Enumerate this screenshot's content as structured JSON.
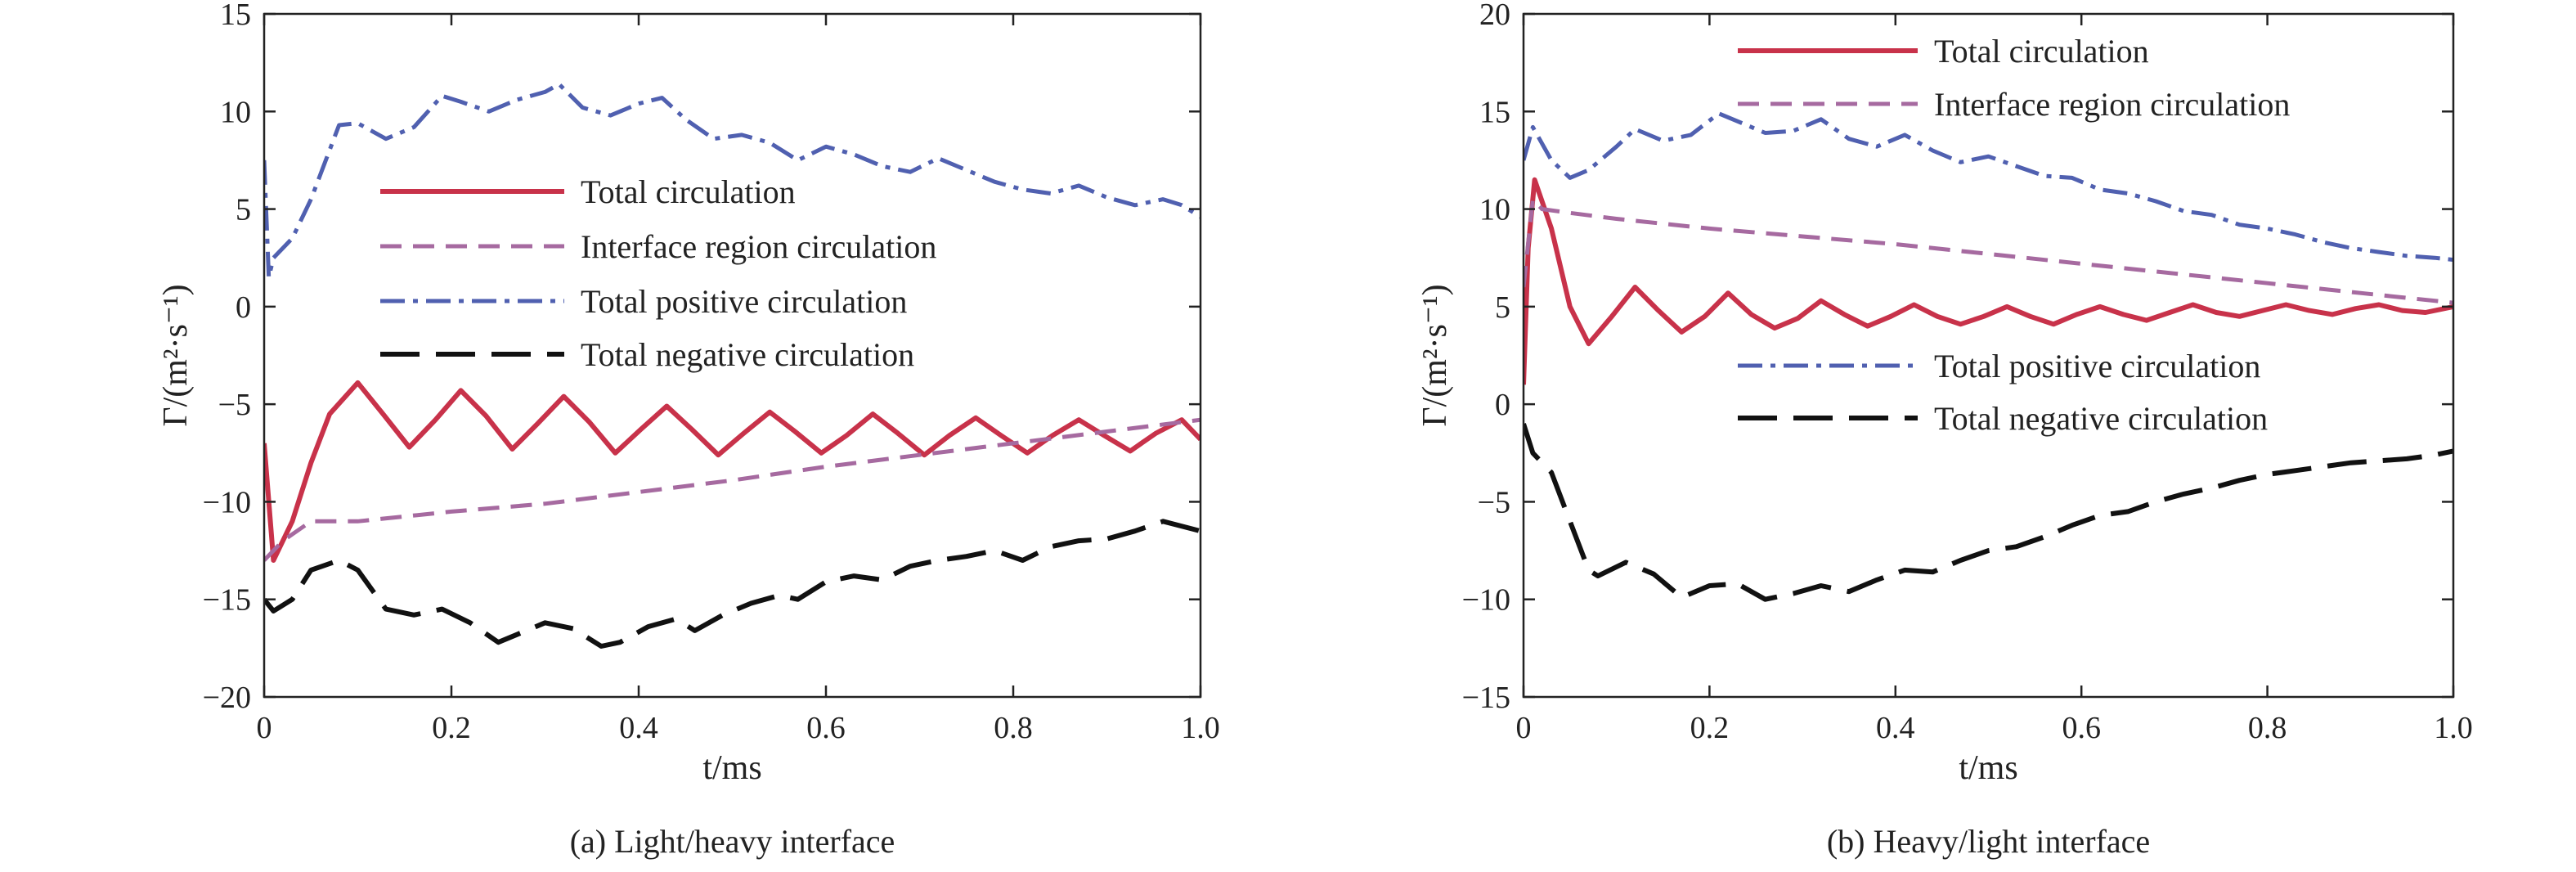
{
  "chart_data": [
    {
      "type": "line",
      "panel": "a",
      "caption": "(a) Light/heavy interface",
      "xlabel": "t/ms",
      "ylabel": "Γ/(m²·s⁻¹)",
      "xlim": [
        0,
        1.0
      ],
      "ylim": [
        -20,
        15
      ],
      "xticks": [
        "0",
        "0.2",
        "0.4",
        "0.6",
        "0.8",
        "1.0"
      ],
      "yticks": [
        "15",
        "10",
        "5",
        "0",
        "−5",
        "−10",
        "−15",
        "−20"
      ],
      "legend_position": "center",
      "series": [
        {
          "name": "Total circulation",
          "color": "#c8324a",
          "dash": "solid",
          "x": [
            0,
            0.01,
            0.03,
            0.05,
            0.07,
            0.1,
            0.127,
            0.155,
            0.183,
            0.21,
            0.237,
            0.265,
            0.292,
            0.32,
            0.347,
            0.375,
            0.402,
            0.43,
            0.457,
            0.485,
            0.512,
            0.54,
            0.567,
            0.595,
            0.622,
            0.65,
            0.677,
            0.705,
            0.732,
            0.76,
            0.787,
            0.815,
            0.842,
            0.87,
            0.897,
            0.925,
            0.952,
            0.98,
            1.0
          ],
          "values": [
            -7,
            -13,
            -11,
            -8,
            -5.5,
            -3.9,
            -5.5,
            -7.2,
            -5.8,
            -4.3,
            -5.6,
            -7.3,
            -6,
            -4.6,
            -5.9,
            -7.5,
            -6.3,
            -5.1,
            -6.3,
            -7.6,
            -6.5,
            -5.4,
            -6.4,
            -7.5,
            -6.6,
            -5.5,
            -6.5,
            -7.6,
            -6.6,
            -5.7,
            -6.6,
            -7.5,
            -6.6,
            -5.8,
            -6.6,
            -7.4,
            -6.5,
            -5.8,
            -6.8
          ]
        },
        {
          "name": "Interface region circulation",
          "color": "#a66aa0",
          "dash": "dashed",
          "x": [
            0,
            0.02,
            0.05,
            0.1,
            0.2,
            0.3,
            0.4,
            0.5,
            0.6,
            0.7,
            0.8,
            0.9,
            1.0
          ],
          "values": [
            -13,
            -12,
            -11,
            -11,
            -10.5,
            -10.1,
            -9.5,
            -8.9,
            -8.2,
            -7.6,
            -7,
            -6.4,
            -5.8
          ]
        },
        {
          "name": "Total positive circulation",
          "color": "#5060b0",
          "dash": "dashdot",
          "x": [
            0,
            0.005,
            0.01,
            0.03,
            0.05,
            0.08,
            0.1,
            0.13,
            0.16,
            0.19,
            0.21,
            0.24,
            0.27,
            0.3,
            0.315,
            0.34,
            0.37,
            0.4,
            0.425,
            0.45,
            0.48,
            0.51,
            0.54,
            0.57,
            0.6,
            0.63,
            0.66,
            0.69,
            0.72,
            0.75,
            0.78,
            0.81,
            0.84,
            0.87,
            0.9,
            0.93,
            0.96,
            0.98,
            1.0
          ],
          "values": [
            7.5,
            1.5,
            2.5,
            3.5,
            5.5,
            9.3,
            9.4,
            8.6,
            9.2,
            10.8,
            10.5,
            10.0,
            10.6,
            11.0,
            11.4,
            10.2,
            9.8,
            10.4,
            10.7,
            9.6,
            8.6,
            8.8,
            8.4,
            7.5,
            8.2,
            7.8,
            7.2,
            6.9,
            7.6,
            7.0,
            6.4,
            6.0,
            5.8,
            6.2,
            5.6,
            5.2,
            5.5,
            5.2,
            4.6
          ]
        },
        {
          "name": "Total negative circulation",
          "color": "#111111",
          "dash": "longdash",
          "x": [
            0,
            0.01,
            0.03,
            0.05,
            0.08,
            0.1,
            0.13,
            0.16,
            0.19,
            0.22,
            0.25,
            0.27,
            0.3,
            0.33,
            0.36,
            0.38,
            0.41,
            0.44,
            0.46,
            0.49,
            0.52,
            0.55,
            0.57,
            0.6,
            0.63,
            0.66,
            0.69,
            0.72,
            0.75,
            0.78,
            0.81,
            0.84,
            0.87,
            0.9,
            0.93,
            0.96,
            1.0
          ],
          "values": [
            -15,
            -15.6,
            -15,
            -13.5,
            -13,
            -13.5,
            -15.5,
            -15.8,
            -15.5,
            -16.2,
            -17.2,
            -16.8,
            -16.2,
            -16.5,
            -17.4,
            -17.2,
            -16.4,
            -16.0,
            -16.6,
            -15.8,
            -15.2,
            -14.8,
            -15.0,
            -14.1,
            -13.8,
            -14.0,
            -13.3,
            -13.0,
            -12.8,
            -12.5,
            -13.0,
            -12.3,
            -12.0,
            -11.9,
            -11.5,
            -11.0,
            -11.5
          ]
        }
      ]
    },
    {
      "type": "line",
      "panel": "b",
      "caption": "(b) Heavy/light interface",
      "xlabel": "t/ms",
      "ylabel": "Γ/(m²·s⁻¹)",
      "xlim": [
        0,
        1.0
      ],
      "ylim": [
        -15,
        20
      ],
      "xticks": [
        "0",
        "0.2",
        "0.4",
        "0.6",
        "0.8",
        "1.0"
      ],
      "yticks": [
        "20",
        "15",
        "10",
        "5",
        "0",
        "−5",
        "−10",
        "−15"
      ],
      "legend_position": "top-right and center-right",
      "series": [
        {
          "name": "Total circulation",
          "color": "#c8324a",
          "dash": "solid",
          "x": [
            0,
            0.005,
            0.012,
            0.03,
            0.05,
            0.07,
            0.095,
            0.12,
            0.145,
            0.17,
            0.195,
            0.22,
            0.245,
            0.27,
            0.295,
            0.32,
            0.345,
            0.37,
            0.395,
            0.42,
            0.445,
            0.47,
            0.495,
            0.52,
            0.545,
            0.57,
            0.595,
            0.62,
            0.645,
            0.67,
            0.695,
            0.72,
            0.745,
            0.77,
            0.795,
            0.82,
            0.845,
            0.87,
            0.895,
            0.92,
            0.945,
            0.97,
            1.0
          ],
          "values": [
            1,
            8,
            11.5,
            9,
            5,
            3.1,
            4.5,
            6.0,
            4.8,
            3.7,
            4.5,
            5.7,
            4.6,
            3.9,
            4.4,
            5.3,
            4.6,
            4.0,
            4.5,
            5.1,
            4.5,
            4.1,
            4.5,
            5.0,
            4.5,
            4.1,
            4.6,
            5.0,
            4.6,
            4.3,
            4.7,
            5.1,
            4.7,
            4.5,
            4.8,
            5.1,
            4.8,
            4.6,
            4.9,
            5.1,
            4.8,
            4.7,
            5.0
          ]
        },
        {
          "name": "Interface region circulation",
          "color": "#a66aa0",
          "dash": "dashed",
          "x": [
            0,
            0.01,
            0.02,
            0.05,
            0.1,
            0.2,
            0.3,
            0.4,
            0.5,
            0.6,
            0.7,
            0.8,
            0.9,
            1.0
          ],
          "values": [
            6,
            10.5,
            10,
            9.8,
            9.5,
            9.0,
            8.6,
            8.2,
            7.7,
            7.2,
            6.7,
            6.2,
            5.7,
            5.2
          ]
        },
        {
          "name": "Total positive circulation",
          "color": "#5060b0",
          "dash": "dashdot",
          "x": [
            0,
            0.01,
            0.03,
            0.05,
            0.07,
            0.1,
            0.12,
            0.15,
            0.18,
            0.21,
            0.23,
            0.26,
            0.29,
            0.32,
            0.35,
            0.38,
            0.41,
            0.44,
            0.47,
            0.5,
            0.53,
            0.56,
            0.59,
            0.62,
            0.65,
            0.68,
            0.71,
            0.74,
            0.77,
            0.8,
            0.83,
            0.86,
            0.89,
            0.92,
            0.95,
            0.98,
            1.0
          ],
          "values": [
            12.5,
            14.2,
            12.5,
            11.6,
            12.0,
            13.2,
            14.1,
            13.5,
            13.8,
            14.9,
            14.5,
            13.9,
            14.0,
            14.6,
            13.6,
            13.2,
            13.8,
            13.0,
            12.4,
            12.7,
            12.2,
            11.7,
            11.6,
            11.0,
            10.8,
            10.4,
            9.9,
            9.7,
            9.2,
            9.0,
            8.7,
            8.3,
            8.0,
            7.8,
            7.6,
            7.5,
            7.4
          ]
        },
        {
          "name": "Total negative circulation",
          "color": "#111111",
          "dash": "longdash",
          "x": [
            0,
            0.01,
            0.03,
            0.05,
            0.07,
            0.08,
            0.11,
            0.14,
            0.17,
            0.2,
            0.23,
            0.26,
            0.29,
            0.32,
            0.35,
            0.38,
            0.41,
            0.44,
            0.47,
            0.5,
            0.53,
            0.56,
            0.59,
            0.62,
            0.65,
            0.68,
            0.71,
            0.74,
            0.77,
            0.8,
            0.83,
            0.86,
            0.89,
            0.92,
            0.95,
            0.98,
            1.0
          ],
          "values": [
            -1,
            -2.5,
            -3.5,
            -6.0,
            -8.5,
            -8.8,
            -8.1,
            -8.7,
            -9.9,
            -9.3,
            -9.2,
            -10.0,
            -9.7,
            -9.3,
            -9.6,
            -9.0,
            -8.5,
            -8.6,
            -8.0,
            -7.5,
            -7.3,
            -6.8,
            -6.2,
            -5.7,
            -5.5,
            -5.0,
            -4.6,
            -4.3,
            -3.9,
            -3.6,
            -3.4,
            -3.2,
            -3.0,
            -2.9,
            -2.8,
            -2.6,
            -2.4
          ]
        }
      ]
    }
  ]
}
